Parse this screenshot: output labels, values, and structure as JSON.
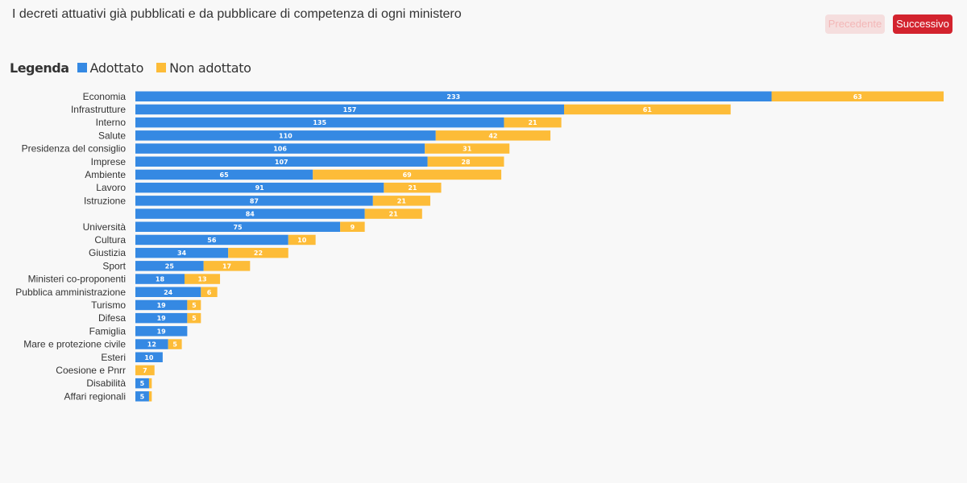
{
  "title": "I decreti attuativi già pubblicati e da pubblicare di competenza di ogni ministero",
  "nav": {
    "prev_label": "Precedente",
    "next_label": "Successivo"
  },
  "colors": {
    "adopted": "#3589e3",
    "not_adopted": "#fdbc38",
    "value_on_blue": "#ffffff",
    "value_on_yellow": "#ffffff"
  },
  "chart_data": {
    "type": "bar",
    "orientation": "horizontal",
    "stacked": true,
    "legend": {
      "title": "Legenda",
      "position": "top-left"
    },
    "categories": [
      "Economia",
      "Infrastrutture",
      "Interno",
      "Salute",
      "Presidenza del consiglio",
      "Imprese",
      "Ambiente",
      "Lavoro",
      "Istruzione",
      "",
      "Università",
      "Cultura",
      "Giustizia",
      "Sport",
      "Ministeri co-proponenti",
      "Pubblica amministrazione",
      "Turismo",
      "Difesa",
      "Famiglia",
      "Mare e protezione civile",
      "Esteri",
      "Coesione e Pnrr",
      "Disabilità",
      "Affari regionali"
    ],
    "series": [
      {
        "name": "Adottato",
        "color": "#3589e3",
        "values": [
          233,
          157,
          135,
          110,
          106,
          107,
          65,
          91,
          87,
          84,
          75,
          56,
          34,
          25,
          18,
          24,
          19,
          19,
          19,
          12,
          10,
          0,
          5,
          5
        ]
      },
      {
        "name": "Non adottato",
        "color": "#fdbc38",
        "values": [
          63,
          61,
          21,
          42,
          31,
          28,
          69,
          21,
          21,
          21,
          9,
          10,
          22,
          17,
          13,
          6,
          5,
          5,
          0,
          5,
          0,
          7,
          1,
          1
        ]
      }
    ],
    "xlim": [
      0,
      296
    ]
  }
}
